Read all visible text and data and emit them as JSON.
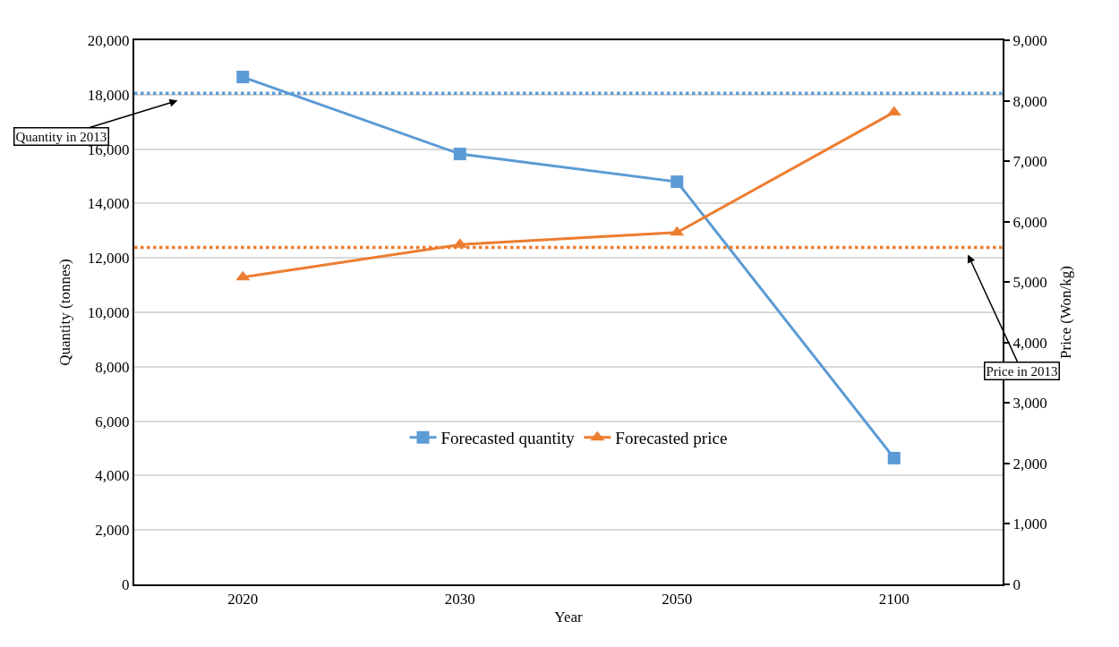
{
  "chart_data": {
    "type": "line",
    "xlabel": "Year",
    "ylabel": "Quantity (tonnes)",
    "y2label": "Price (Won/kg)",
    "categories": [
      "2020",
      "2030",
      "2050",
      "2100"
    ],
    "series": [
      {
        "name": "Forecasted quantity",
        "color": "#5b9bd5",
        "values": [
          18650,
          15820,
          14800,
          4640
        ],
        "marker": "square"
      },
      {
        "name": "Forecasted price",
        "color": "#ed7d31",
        "values": [
          5080,
          5620,
          5820,
          7810
        ],
        "marker": "triangle",
        "axis": "y2"
      }
    ],
    "ylim": [
      0,
      20000
    ],
    "yticks": [
      {
        "value": 0,
        "label": "0"
      },
      {
        "value": 2000,
        "label": "2,000"
      },
      {
        "value": 4000,
        "label": "4,000"
      },
      {
        "value": 6000,
        "label": "6,000"
      },
      {
        "value": 8000,
        "label": "8,000"
      },
      {
        "value": 10000,
        "label": "10,000"
      },
      {
        "value": 12000,
        "label": "12,000"
      },
      {
        "value": 14000,
        "label": "14,000"
      },
      {
        "value": 16000,
        "label": "16,000"
      },
      {
        "value": 18000,
        "label": "18,000"
      },
      {
        "value": 20000,
        "label": "20,000"
      }
    ],
    "y2lim": [
      0,
      9000
    ],
    "y2ticks": [
      {
        "value": 0,
        "label": "0"
      },
      {
        "value": 1000,
        "label": "1,000"
      },
      {
        "value": 2000,
        "label": "2,000"
      },
      {
        "value": 3000,
        "label": "3,000"
      },
      {
        "value": 4000,
        "label": "4,000"
      },
      {
        "value": 5000,
        "label": "5,000"
      },
      {
        "value": 6000,
        "label": "6,000"
      },
      {
        "value": 7000,
        "label": "7,000"
      },
      {
        "value": 8000,
        "label": "8,000"
      },
      {
        "value": 9000,
        "label": "9,000"
      }
    ],
    "ref_lines": [
      {
        "axis": "y",
        "value": 18050,
        "label": "Quantity in 2013",
        "color": "#5b9bd5",
        "line_style": "dotted"
      },
      {
        "axis": "y2",
        "value": 5575,
        "label": "Price in 2013",
        "color": "#ed7d31",
        "line_style": "dotted"
      }
    ],
    "grid": "y",
    "legend": "bottom",
    "line_style": "solid"
  }
}
